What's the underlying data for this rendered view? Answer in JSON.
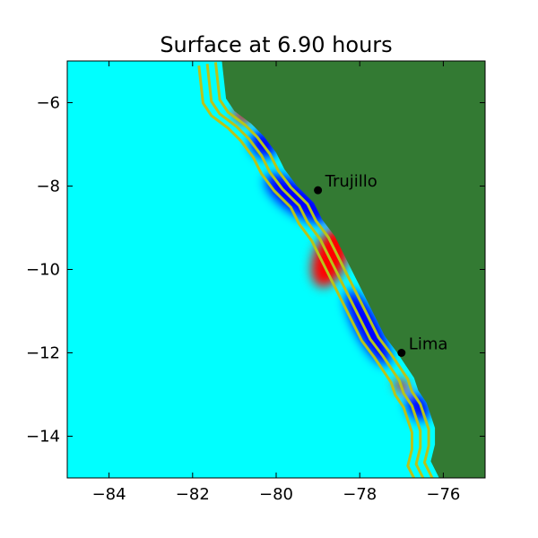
{
  "title": "Surface at 6.90 hours",
  "colors": {
    "ocean": "#00ffff",
    "land": "#337a33",
    "contour": "#b8c41a",
    "positive": "#ff0000",
    "negative": "#0000ff",
    "frame": "#000000"
  },
  "axes": {
    "x_range": [
      -85,
      -75
    ],
    "y_range": [
      -15,
      -5
    ],
    "x_ticks": [
      -84,
      -82,
      -80,
      -78,
      -76
    ],
    "y_ticks": [
      -6,
      -8,
      -10,
      -12,
      -14
    ],
    "x_tick_labels": [
      "−84",
      "−82",
      "−80",
      "−78",
      "−76"
    ],
    "y_tick_labels": [
      "−6",
      "−8",
      "−10",
      "−12",
      "−14"
    ]
  },
  "cities": [
    {
      "name": "Trujillo",
      "lon": -79.0,
      "lat": -8.1
    },
    {
      "name": "Lima",
      "lon": -77.0,
      "lat": -12.0
    }
  ],
  "coastline": [
    [
      -81.3,
      -5.0
    ],
    [
      -81.2,
      -5.9
    ],
    [
      -81.0,
      -6.2
    ],
    [
      -80.6,
      -6.5
    ],
    [
      -80.3,
      -6.8
    ],
    [
      -80.0,
      -7.2
    ],
    [
      -79.8,
      -7.6
    ],
    [
      -79.5,
      -8.0
    ],
    [
      -79.1,
      -8.4
    ],
    [
      -78.9,
      -8.8
    ],
    [
      -78.6,
      -9.2
    ],
    [
      -78.4,
      -9.6
    ],
    [
      -78.2,
      -10.0
    ],
    [
      -78.0,
      -10.4
    ],
    [
      -77.8,
      -10.8
    ],
    [
      -77.6,
      -11.2
    ],
    [
      -77.4,
      -11.6
    ],
    [
      -77.1,
      -12.0
    ],
    [
      -76.9,
      -12.3
    ],
    [
      -76.7,
      -12.6
    ],
    [
      -76.6,
      -12.9
    ],
    [
      -76.4,
      -13.2
    ],
    [
      -76.3,
      -13.5
    ],
    [
      -76.2,
      -13.8
    ],
    [
      -76.2,
      -14.2
    ],
    [
      -76.3,
      -14.6
    ],
    [
      -76.1,
      -15.0
    ]
  ],
  "contour_offsets": [
    0.15,
    0.35,
    0.55
  ],
  "anomalies": [
    {
      "sign": "negative",
      "lon": -80.3,
      "lat": -7.0,
      "rx": 0.35,
      "ry": 0.3,
      "rot": 55
    },
    {
      "sign": "negative",
      "lon": -79.5,
      "lat": -8.3,
      "rx": 0.9,
      "ry": 0.35,
      "rot": 35
    },
    {
      "sign": "positive",
      "lon": -78.7,
      "lat": -9.7,
      "rx": 0.4,
      "ry": 0.75,
      "rot": 20
    },
    {
      "sign": "positive",
      "lon": -80.8,
      "lat": -6.3,
      "rx": 0.25,
      "ry": 0.15,
      "rot": 40
    },
    {
      "sign": "negative",
      "lon": -77.8,
      "lat": -11.4,
      "rx": 1.0,
      "ry": 0.3,
      "rot": 62
    },
    {
      "sign": "negative",
      "lon": -76.6,
      "lat": -13.3,
      "rx": 0.35,
      "ry": 0.25,
      "rot": 60
    },
    {
      "sign": "positive",
      "lon": -77.0,
      "lat": -12.8,
      "rx": 0.2,
      "ry": 0.12,
      "rot": 40
    }
  ]
}
